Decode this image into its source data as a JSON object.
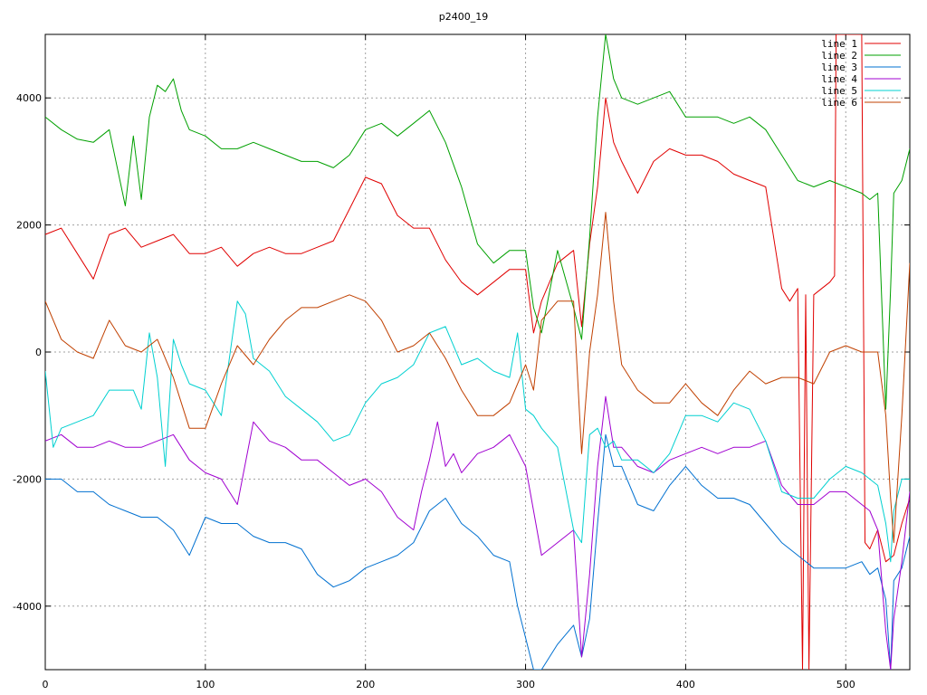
{
  "chart_data": {
    "type": "line",
    "title": "p2400_19",
    "xlabel": "",
    "ylabel": "",
    "xlim": [
      0,
      540
    ],
    "ylim": [
      -5000,
      5000
    ],
    "x_ticks": [
      0,
      100,
      200,
      300,
      400,
      500
    ],
    "y_ticks": [
      -4000,
      -2000,
      0,
      2000,
      4000
    ],
    "x_tick_labels": [
      "0",
      "100",
      "200",
      "300",
      "400",
      "500"
    ],
    "y_tick_labels": [
      "-4000",
      "-2000",
      "0",
      "2000",
      "4000"
    ],
    "grid": true,
    "legend_position": "top-right",
    "series": [
      {
        "name": "line 1",
        "color": "#e00000",
        "x": [
          0,
          10,
          20,
          30,
          40,
          50,
          60,
          70,
          80,
          90,
          100,
          110,
          120,
          130,
          140,
          150,
          160,
          170,
          180,
          190,
          200,
          210,
          220,
          230,
          240,
          250,
          260,
          270,
          280,
          290,
          300,
          305,
          310,
          320,
          330,
          335,
          340,
          345,
          350,
          355,
          360,
          370,
          380,
          390,
          400,
          410,
          420,
          430,
          440,
          450,
          460,
          465,
          470,
          473,
          475,
          477,
          480,
          485,
          490,
          493,
          494,
          500,
          510,
          512,
          515,
          520,
          525,
          530,
          535,
          540
        ],
        "y": [
          1850,
          1950,
          1550,
          1150,
          1850,
          1950,
          1650,
          1750,
          1850,
          1550,
          1550,
          1650,
          1350,
          1550,
          1650,
          1550,
          1550,
          1650,
          1750,
          2250,
          2750,
          2650,
          2150,
          1950,
          1950,
          1450,
          1100,
          900,
          1100,
          1300,
          1300,
          300,
          800,
          1400,
          1600,
          400,
          1700,
          2600,
          4000,
          3300,
          3000,
          2500,
          3000,
          3200,
          3100,
          3100,
          3000,
          2800,
          2700,
          2600,
          1000,
          800,
          1000,
          -5000,
          900,
          -5000,
          900,
          1000,
          1100,
          1200,
          5000,
          5000,
          5000,
          -3000,
          -3100,
          -2800,
          -3300,
          -3200,
          -2700,
          -2300
        ]
      },
      {
        "name": "line 2",
        "color": "#00a000",
        "x": [
          0,
          10,
          20,
          30,
          40,
          50,
          55,
          60,
          65,
          70,
          75,
          80,
          85,
          90,
          100,
          110,
          120,
          130,
          140,
          150,
          160,
          170,
          180,
          190,
          200,
          210,
          220,
          230,
          240,
          250,
          260,
          270,
          280,
          290,
          300,
          305,
          310,
          320,
          330,
          335,
          340,
          345,
          350,
          355,
          360,
          370,
          380,
          390,
          400,
          410,
          420,
          430,
          440,
          450,
          460,
          470,
          480,
          490,
          500,
          510,
          515,
          520,
          525,
          528,
          530,
          535,
          540
        ],
        "y": [
          3700,
          3500,
          3350,
          3300,
          3500,
          2300,
          3400,
          2400,
          3700,
          4200,
          4100,
          4300,
          3800,
          3500,
          3400,
          3200,
          3200,
          3300,
          3200,
          3100,
          3000,
          3000,
          2900,
          3100,
          3500,
          3600,
          3400,
          3600,
          3800,
          3300,
          2600,
          1700,
          1400,
          1600,
          1600,
          700,
          300,
          1600,
          700,
          200,
          1800,
          3700,
          5000,
          4300,
          4000,
          3900,
          4000,
          4100,
          3700,
          3700,
          3700,
          3600,
          3700,
          3500,
          3100,
          2700,
          2600,
          2700,
          2600,
          2500,
          2400,
          2500,
          -900,
          1000,
          2500,
          2700,
          3200
        ]
      },
      {
        "name": "line 3",
        "color": "#0070d0",
        "x": [
          0,
          10,
          20,
          30,
          40,
          50,
          60,
          70,
          80,
          90,
          100,
          110,
          120,
          130,
          140,
          150,
          160,
          170,
          180,
          190,
          200,
          210,
          220,
          230,
          240,
          250,
          260,
          270,
          280,
          290,
          295,
          300,
          305,
          310,
          320,
          330,
          335,
          340,
          345,
          350,
          355,
          360,
          370,
          380,
          390,
          400,
          410,
          420,
          430,
          440,
          450,
          460,
          470,
          480,
          490,
          500,
          510,
          515,
          520,
          525,
          528,
          530,
          535,
          540
        ],
        "y": [
          -2000,
          -2000,
          -2200,
          -2200,
          -2400,
          -2500,
          -2600,
          -2600,
          -2800,
          -3200,
          -2600,
          -2700,
          -2700,
          -2900,
          -3000,
          -3000,
          -3100,
          -3500,
          -3700,
          -3600,
          -3400,
          -3300,
          -3200,
          -3000,
          -2500,
          -2300,
          -2700,
          -2900,
          -3200,
          -3300,
          -4000,
          -4500,
          -5000,
          -5000,
          -4600,
          -4300,
          -4800,
          -4200,
          -2700,
          -1300,
          -1800,
          -1800,
          -2400,
          -2500,
          -2100,
          -1800,
          -2100,
          -2300,
          -2300,
          -2400,
          -2700,
          -3000,
          -3200,
          -3400,
          -3400,
          -3400,
          -3300,
          -3500,
          -3400,
          -3900,
          -5000,
          -3600,
          -3400,
          -2900
        ]
      },
      {
        "name": "line 4",
        "color": "#a000d0",
        "x": [
          0,
          10,
          20,
          30,
          40,
          50,
          60,
          70,
          80,
          90,
          100,
          110,
          120,
          130,
          140,
          150,
          160,
          170,
          180,
          190,
          200,
          210,
          220,
          230,
          235,
          240,
          245,
          250,
          255,
          260,
          270,
          280,
          290,
          300,
          305,
          310,
          320,
          330,
          335,
          340,
          345,
          350,
          355,
          360,
          370,
          380,
          390,
          400,
          410,
          420,
          430,
          440,
          450,
          460,
          470,
          480,
          490,
          500,
          510,
          515,
          520,
          525,
          528,
          530,
          535,
          540
        ],
        "y": [
          -1400,
          -1300,
          -1500,
          -1500,
          -1400,
          -1500,
          -1500,
          -1400,
          -1300,
          -1700,
          -1900,
          -2000,
          -2400,
          -1100,
          -1400,
          -1500,
          -1700,
          -1700,
          -1900,
          -2100,
          -2000,
          -2200,
          -2600,
          -2800,
          -2200,
          -1700,
          -1100,
          -1800,
          -1600,
          -1900,
          -1600,
          -1500,
          -1300,
          -1800,
          -2500,
          -3200,
          -3000,
          -2800,
          -4800,
          -3500,
          -1800,
          -700,
          -1500,
          -1500,
          -1800,
          -1900,
          -1700,
          -1600,
          -1500,
          -1600,
          -1500,
          -1500,
          -1400,
          -2100,
          -2400,
          -2400,
          -2200,
          -2200,
          -2400,
          -2500,
          -2800,
          -4400,
          -5000,
          -4200,
          -3300,
          -2200
        ]
      },
      {
        "name": "line 5",
        "color": "#00d0d0",
        "x": [
          0,
          5,
          10,
          20,
          30,
          40,
          50,
          55,
          60,
          65,
          70,
          75,
          80,
          85,
          90,
          100,
          110,
          120,
          125,
          130,
          140,
          150,
          160,
          170,
          180,
          190,
          200,
          210,
          220,
          230,
          240,
          250,
          260,
          270,
          280,
          290,
          295,
          300,
          305,
          310,
          320,
          330,
          335,
          340,
          345,
          350,
          355,
          360,
          370,
          380,
          390,
          400,
          410,
          420,
          430,
          440,
          450,
          460,
          470,
          480,
          490,
          500,
          510,
          515,
          520,
          525,
          528,
          530,
          535,
          540
        ],
        "y": [
          -300,
          -1500,
          -1200,
          -1100,
          -1000,
          -600,
          -600,
          -600,
          -900,
          300,
          -400,
          -1800,
          200,
          -200,
          -500,
          -600,
          -1000,
          800,
          600,
          -100,
          -300,
          -700,
          -900,
          -1100,
          -1400,
          -1300,
          -800,
          -500,
          -400,
          -200,
          300,
          400,
          -200,
          -100,
          -300,
          -400,
          300,
          -900,
          -1000,
          -1200,
          -1500,
          -2800,
          -3000,
          -1300,
          -1200,
          -1500,
          -1400,
          -1700,
          -1700,
          -1900,
          -1600,
          -1000,
          -1000,
          -1100,
          -800,
          -900,
          -1400,
          -2200,
          -2300,
          -2300,
          -2000,
          -1800,
          -1900,
          -2000,
          -2100,
          -2700,
          -3300,
          -2500,
          -2000,
          -2000
        ]
      },
      {
        "name": "line 6",
        "color": "#c04000",
        "x": [
          0,
          10,
          20,
          30,
          40,
          50,
          60,
          70,
          80,
          85,
          90,
          100,
          110,
          120,
          130,
          140,
          150,
          160,
          170,
          180,
          190,
          200,
          210,
          220,
          230,
          240,
          250,
          260,
          270,
          280,
          290,
          300,
          305,
          310,
          320,
          330,
          335,
          340,
          345,
          350,
          355,
          360,
          370,
          380,
          390,
          400,
          410,
          420,
          430,
          440,
          450,
          460,
          470,
          480,
          490,
          500,
          510,
          515,
          520,
          525,
          528,
          530,
          535,
          540
        ],
        "y": [
          800,
          200,
          0,
          -100,
          500,
          100,
          0,
          200,
          -400,
          -800,
          -1200,
          -1200,
          -500,
          100,
          -200,
          200,
          500,
          700,
          700,
          800,
          900,
          800,
          500,
          0,
          100,
          300,
          -100,
          -600,
          -1000,
          -1000,
          -800,
          -200,
          -600,
          500,
          800,
          800,
          -1600,
          0,
          900,
          2200,
          800,
          -200,
          -600,
          -800,
          -800,
          -500,
          -800,
          -1000,
          -600,
          -300,
          -500,
          -400,
          -400,
          -500,
          0,
          100,
          0,
          0,
          0,
          -1000,
          -2300,
          -3000,
          -1000,
          1400
        ]
      }
    ]
  }
}
